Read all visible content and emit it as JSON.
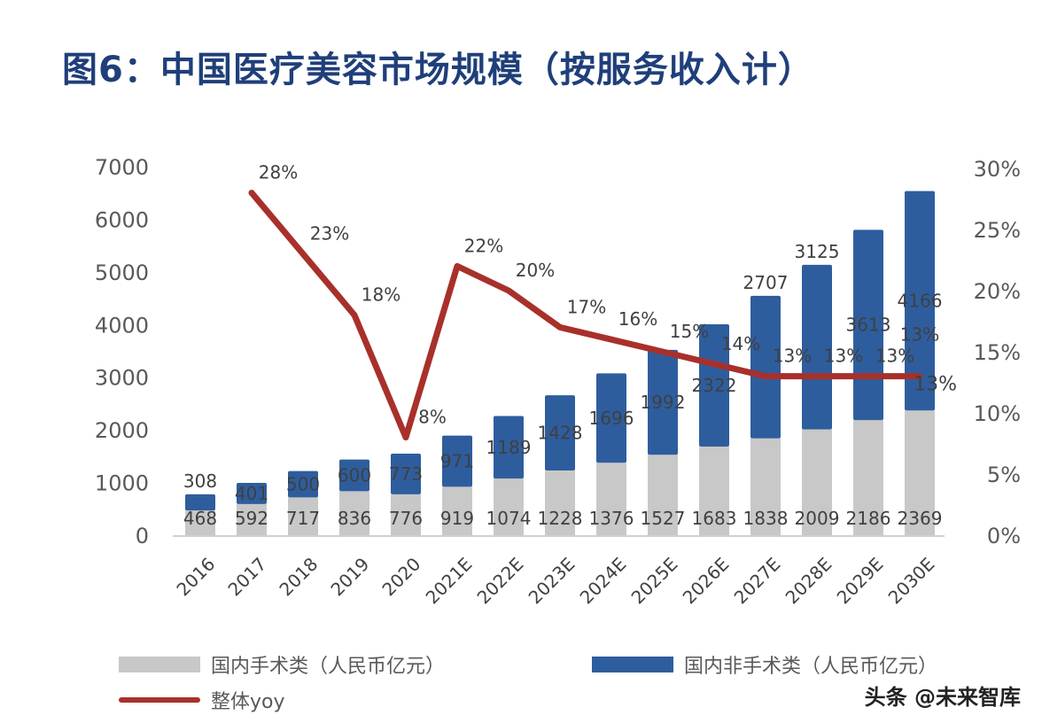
{
  "title": "图6：中国医疗美容市场规模（按服务收入计）",
  "watermark": "头条 @未来智库",
  "chart_data": {
    "type": "bar",
    "stacked": true,
    "title": "图6：中国医疗美容市场规模（按服务收入计）",
    "categories": [
      "2016",
      "2017",
      "2018",
      "2019",
      "2020",
      "2021E",
      "2022E",
      "2023E",
      "2024E",
      "2025E",
      "2026E",
      "2027E",
      "2028E",
      "2029E",
      "2030E"
    ],
    "series": [
      {
        "name": "国内手术类（人民币亿元）",
        "type": "bar",
        "axis": "left",
        "color": "#c8c8c8",
        "values": [
          468,
          592,
          717,
          836,
          776,
          919,
          1074,
          1228,
          1376,
          1527,
          1683,
          1838,
          2009,
          2186,
          2369
        ]
      },
      {
        "name": "国内非手术类（人民币亿元）",
        "type": "bar",
        "axis": "left",
        "color": "#2e5d9e",
        "values": [
          308,
          401,
          500,
          600,
          773,
          971,
          1189,
          1428,
          1696,
          1992,
          2322,
          2707,
          3125,
          3613,
          4166
        ]
      },
      {
        "name": "整体yoy",
        "type": "line",
        "axis": "right",
        "color": "#a8302b",
        "values": [
          null,
          28,
          23,
          18,
          8,
          22,
          20,
          17,
          16,
          15,
          14,
          13,
          13,
          13,
          13
        ],
        "labels": [
          "",
          "28%",
          "23%",
          "18%",
          "8%",
          "22%",
          "20%",
          "17%",
          "16%",
          "15%",
          "14%",
          "13%",
          "13%",
          "13%",
          "13%"
        ]
      }
    ],
    "left_axis": {
      "min": 0,
      "max": 7000,
      "ticks": [
        "0",
        "1000",
        "2000",
        "3000",
        "4000",
        "5000",
        "6000",
        "7000"
      ]
    },
    "right_axis": {
      "min": 0,
      "max": 30,
      "ticks": [
        "0%",
        "5%",
        "10%",
        "15%",
        "20%",
        "25%",
        "30%"
      ]
    },
    "right_axis_extra_label": "13%",
    "grid": false,
    "legend_position": "bottom",
    "xlabel": "",
    "ylabel": ""
  },
  "legend": [
    {
      "key": "surgical",
      "label": "国内手术类（人民币亿元）",
      "icon": "gray-bar-swatch"
    },
    {
      "key": "nonsurgical",
      "label": "国内非手术类（人民币亿元）",
      "icon": "blue-bar-swatch"
    },
    {
      "key": "yoy",
      "label": "整体yoy",
      "icon": "red-line-swatch"
    }
  ]
}
